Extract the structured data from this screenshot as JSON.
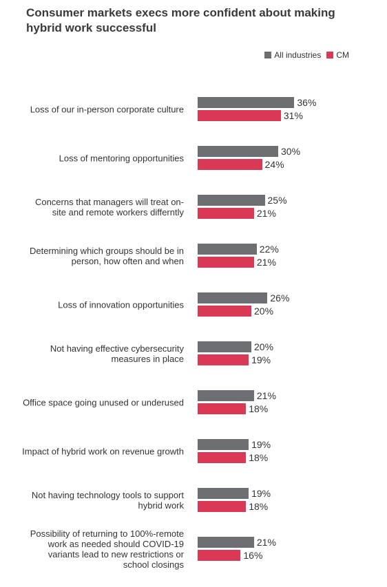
{
  "chart_data": {
    "type": "bar",
    "orientation": "horizontal",
    "title": "Consumer markets execs more confident about making hybrid work successful",
    "categories": [
      "Loss of our in-person corporate culture",
      "Loss of mentoring opportunities",
      "Concerns that managers will treat on-site and remote workers differntly",
      "Determining which groups should be in person, how often and when",
      "Loss of innovation opportunities",
      "Not having effective cybersecurity measures in place",
      "Office space going unused or underused",
      "Impact of hybrid work on revenue growth",
      "Not having technology tools to support hybrid work",
      "Possibility of returning to 100%-remote work as needed should COVID-19 variants lead to new restrictions or school closings"
    ],
    "series": [
      {
        "name": "All industries",
        "color": "#6d6e71",
        "values": [
          36,
          30,
          25,
          22,
          26,
          20,
          21,
          19,
          19,
          21
        ],
        "value_labels": [
          "36%",
          "30%",
          "25%",
          "22%",
          "26%",
          "20%",
          "21%",
          "19%",
          "19%",
          "21%"
        ]
      },
      {
        "name": "CM",
        "color": "#d93954",
        "values": [
          31,
          24,
          21,
          21,
          20,
          19,
          18,
          18,
          18,
          16
        ],
        "value_labels": [
          "31%",
          "24%",
          "21%",
          "21%",
          "20%",
          "19%",
          "18%",
          "18%",
          "18%",
          "16%"
        ]
      }
    ],
    "legend": "top-right"
  }
}
